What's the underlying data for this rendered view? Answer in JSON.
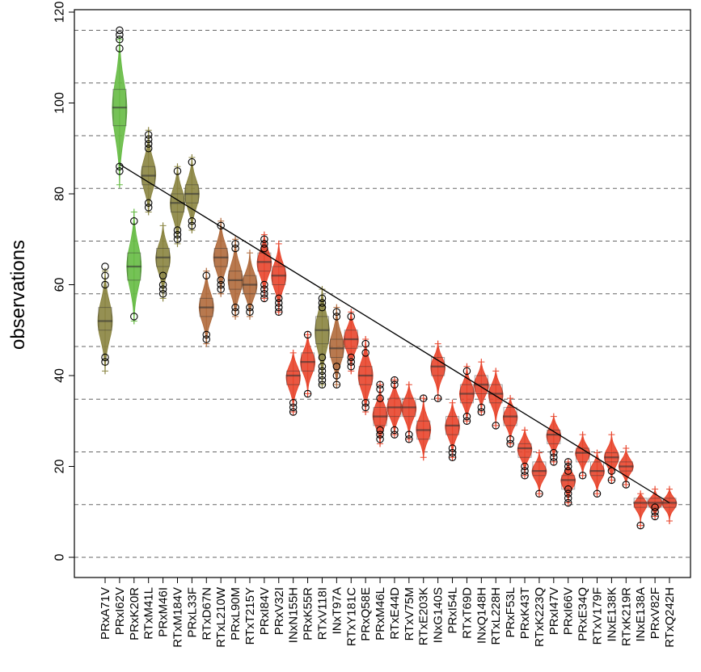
{
  "chart_data": {
    "type": "violin",
    "title": "",
    "xlabel": "",
    "ylabel": "observations",
    "ylim": [
      0,
      120
    ],
    "yticks": [
      0,
      20,
      40,
      60,
      80,
      100,
      120
    ],
    "hlines": [
      0,
      11.6,
      23.2,
      34.8,
      46.4,
      58,
      69.6,
      81.2,
      92.8,
      104.4,
      116
    ],
    "grid": "dashed horizontal lines",
    "trend_line": {
      "from": {
        "category": "PRxI62V",
        "value": 86.5
      },
      "to": {
        "category": "RTxQ242H",
        "value": 12
      }
    },
    "colors": {
      "green": "#66bb44",
      "olive": "#8a8440",
      "brown": "#b06a3c",
      "red": "#e8452c"
    },
    "categories": [
      {
        "name": "PRxA71V",
        "median": 52,
        "lo": 41,
        "hi": 63,
        "q1": 50,
        "q3": 55,
        "color": "olive",
        "outliers": [
          64,
          62,
          60,
          44,
          43
        ]
      },
      {
        "name": "PRxI62V",
        "median": 99,
        "lo": 82,
        "hi": 114,
        "q1": 95,
        "q3": 103,
        "color": "green",
        "outliers": [
          116,
          115,
          114,
          112,
          86,
          85
        ]
      },
      {
        "name": "PRxK20R",
        "median": 64,
        "lo": 52,
        "hi": 76,
        "q1": 61,
        "q3": 67,
        "color": "green",
        "outliers": [
          74,
          53
        ]
      },
      {
        "name": "RTxM41L",
        "median": 84,
        "lo": 76,
        "hi": 94,
        "q1": 82,
        "q3": 86,
        "color": "olive",
        "outliers": [
          93,
          92,
          91,
          90,
          78,
          77
        ]
      },
      {
        "name": "PRxM46I",
        "median": 66,
        "lo": 57,
        "hi": 73,
        "q1": 64,
        "q3": 68,
        "color": "olive",
        "outliers": [
          62,
          60,
          59,
          58
        ]
      },
      {
        "name": "RTxM184V",
        "median": 78,
        "lo": 69,
        "hi": 86,
        "q1": 76,
        "q3": 80,
        "color": "olive",
        "outliers": [
          85,
          72,
          71,
          70
        ]
      },
      {
        "name": "PRxL33F",
        "median": 80,
        "lo": 72,
        "hi": 88,
        "q1": 78,
        "q3": 82,
        "color": "olive",
        "outliers": [
          87,
          74,
          73
        ]
      },
      {
        "name": "RTxD67N",
        "median": 55,
        "lo": 47,
        "hi": 63,
        "q1": 53,
        "q3": 57,
        "color": "brown",
        "outliers": [
          62,
          49,
          48
        ]
      },
      {
        "name": "RTxL210W",
        "median": 66,
        "lo": 58,
        "hi": 74,
        "q1": 64,
        "q3": 68,
        "color": "brown",
        "outliers": [
          73,
          61,
          60,
          59
        ]
      },
      {
        "name": "PRxL90M",
        "median": 61,
        "lo": 53,
        "hi": 70,
        "q1": 59,
        "q3": 63,
        "color": "brown",
        "outliers": [
          69,
          68,
          55,
          54
        ]
      },
      {
        "name": "RTxT215Y",
        "median": 60,
        "lo": 53,
        "hi": 67,
        "q1": 58,
        "q3": 62,
        "color": "brown",
        "outliers": [
          55,
          54
        ]
      },
      {
        "name": "PRxI84V",
        "median": 65,
        "lo": 57,
        "hi": 71,
        "q1": 63,
        "q3": 67,
        "color": "red",
        "outliers": [
          70,
          69,
          68,
          60,
          59,
          58,
          57
        ]
      },
      {
        "name": "PRxV32I",
        "median": 62,
        "lo": 54,
        "hi": 69,
        "q1": 60,
        "q3": 64,
        "color": "red",
        "outliers": [
          57,
          56,
          55,
          54
        ]
      },
      {
        "name": "INxN155H",
        "median": 40,
        "lo": 32,
        "hi": 45,
        "q1": 38,
        "q3": 41,
        "color": "red",
        "outliers": [
          34,
          33,
          32
        ]
      },
      {
        "name": "PRxK55R",
        "median": 43,
        "lo": 36,
        "hi": 49,
        "q1": 41,
        "q3": 45,
        "color": "red",
        "outliers": [
          49,
          36
        ]
      },
      {
        "name": "RTxV118I",
        "median": 50,
        "lo": 38,
        "hi": 59,
        "q1": 47,
        "q3": 53,
        "color": "olive",
        "outliers": [
          57,
          56,
          55,
          44,
          42,
          41,
          40,
          39,
          38
        ]
      },
      {
        "name": "INxT97A",
        "median": 46,
        "lo": 38,
        "hi": 55,
        "q1": 44,
        "q3": 48,
        "color": "brown",
        "outliers": [
          54,
          53,
          42,
          40,
          38
        ]
      },
      {
        "name": "RTxY181C",
        "median": 48,
        "lo": 41,
        "hi": 54,
        "q1": 46,
        "q3": 50,
        "color": "red",
        "outliers": [
          53,
          44,
          43,
          42
        ]
      },
      {
        "name": "PRxQ58E",
        "median": 40,
        "lo": 32,
        "hi": 48,
        "q1": 38,
        "q3": 42,
        "color": "red",
        "outliers": [
          47,
          45,
          34,
          33
        ]
      },
      {
        "name": "PRxM46L",
        "median": 31,
        "lo": 25,
        "hi": 38,
        "q1": 29,
        "q3": 33,
        "color": "red",
        "outliers": [
          38,
          37,
          35,
          28,
          27,
          26
        ]
      },
      {
        "name": "RTxE44D",
        "median": 33,
        "lo": 27,
        "hi": 39,
        "q1": 31,
        "q3": 35,
        "color": "red",
        "outliers": [
          39,
          38,
          28,
          27
        ]
      },
      {
        "name": "RTxV75M",
        "median": 33,
        "lo": 26,
        "hi": 38,
        "q1": 31,
        "q3": 35,
        "color": "red",
        "outliers": [
          27,
          26
        ]
      },
      {
        "name": "RTxE203K",
        "median": 28,
        "lo": 22,
        "hi": 35,
        "q1": 26,
        "q3": 30,
        "color": "red",
        "outliers": [
          35
        ]
      },
      {
        "name": "INxG140S",
        "median": 42,
        "lo": 35,
        "hi": 47,
        "q1": 40,
        "q3": 44,
        "color": "red",
        "outliers": [
          35
        ]
      },
      {
        "name": "PRxI54L",
        "median": 29,
        "lo": 22,
        "hi": 34,
        "q1": 27,
        "q3": 31,
        "color": "red",
        "outliers": [
          24,
          23,
          22
        ]
      },
      {
        "name": "RTxT69D",
        "median": 36,
        "lo": 30,
        "hi": 42,
        "q1": 34,
        "q3": 38,
        "color": "red",
        "outliers": [
          41,
          31,
          30
        ]
      },
      {
        "name": "INxQ148H",
        "median": 38,
        "lo": 32,
        "hi": 43,
        "q1": 36,
        "q3": 40,
        "color": "red",
        "outliers": [
          33,
          32
        ]
      },
      {
        "name": "RTxL228H",
        "median": 36,
        "lo": 29,
        "hi": 41,
        "q1": 34,
        "q3": 38,
        "color": "red",
        "outliers": [
          29
        ]
      },
      {
        "name": "PRxF53L",
        "median": 31,
        "lo": 25,
        "hi": 35,
        "q1": 29,
        "q3": 33,
        "color": "red",
        "outliers": [
          26,
          25
        ]
      },
      {
        "name": "PRxK43T",
        "median": 24,
        "lo": 18,
        "hi": 28,
        "q1": 22,
        "q3": 25,
        "color": "red",
        "outliers": [
          20,
          19,
          18
        ]
      },
      {
        "name": "RTxK223Q",
        "median": 19,
        "lo": 14,
        "hi": 23,
        "q1": 18,
        "q3": 21,
        "color": "red",
        "outliers": [
          14
        ]
      },
      {
        "name": "PRxI47V",
        "median": 27,
        "lo": 21,
        "hi": 31,
        "q1": 25,
        "q3": 28,
        "color": "red",
        "outliers": [
          23,
          22,
          21
        ]
      },
      {
        "name": "PRxI66V",
        "median": 17,
        "lo": 12,
        "hi": 21,
        "q1": 15,
        "q3": 18,
        "color": "red",
        "outliers": [
          21,
          20,
          19,
          15,
          14,
          13,
          12
        ]
      },
      {
        "name": "PRxE34Q",
        "median": 23,
        "lo": 18,
        "hi": 27,
        "q1": 21,
        "q3": 24,
        "color": "red",
        "outliers": [
          18
        ]
      },
      {
        "name": "RTxV179F",
        "median": 19,
        "lo": 14,
        "hi": 23,
        "q1": 18,
        "q3": 21,
        "color": "red",
        "outliers": [
          14
        ]
      },
      {
        "name": "INxE138K",
        "median": 22,
        "lo": 17,
        "hi": 27,
        "q1": 21,
        "q3": 23,
        "color": "red",
        "outliers": [
          19,
          17
        ]
      },
      {
        "name": "RTxK219R",
        "median": 20,
        "lo": 16,
        "hi": 24,
        "q1": 19,
        "q3": 21,
        "color": "red",
        "outliers": [
          16
        ]
      },
      {
        "name": "INxE138A",
        "median": 12,
        "lo": 7,
        "hi": 14,
        "q1": 11,
        "q3": 13,
        "color": "red",
        "outliers": [
          7
        ]
      },
      {
        "name": "PRxV82F",
        "median": 12,
        "lo": 9,
        "hi": 15,
        "q1": 11,
        "q3": 13,
        "color": "red",
        "outliers": [
          11,
          10,
          9
        ]
      },
      {
        "name": "RTxQ242H",
        "median": 12,
        "lo": 8,
        "hi": 15,
        "q1": 11,
        "q3": 13,
        "color": "red",
        "outliers": []
      }
    ]
  }
}
